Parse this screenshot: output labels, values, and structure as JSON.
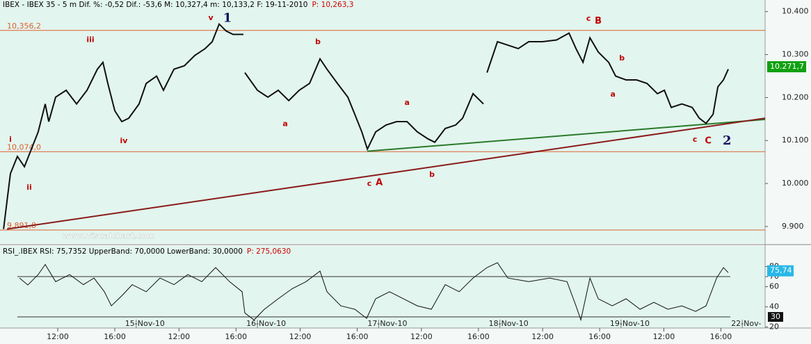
{
  "chart_data": [
    {
      "type": "line",
      "title": "IBEX - IBEX 35 -  5 m Dif. %: -0,52 Dif.: -53,6 M: 10,327,4 m: 10,133,2 F: 19-11-2010",
      "subtitle": "P: 10,263,3",
      "xlim": [
        -1.05,
        52.6
      ],
      "ylim": [
        9861,
        10427
      ],
      "yticks": [
        {
          "value": 10400,
          "label": "10.400"
        },
        {
          "value": 10300,
          "label": "10.300"
        },
        {
          "value": 10200,
          "label": "10.200"
        },
        {
          "value": 10100,
          "label": "10.100"
        },
        {
          "value": 10000,
          "label": "10.000"
        },
        {
          "value": 9900,
          "label": "9.900"
        }
      ],
      "series": [
        {
          "name": "IBEX",
          "color": "#101010",
          "x": [
            -0.8,
            -0.56,
            -0.32,
            0.17,
            0.66,
            1.15,
            1.63,
            2.12,
            2.37,
            2.85,
            3.59,
            4.32,
            5.05,
            5.78,
            6.17,
            6.51,
            7.0,
            7.49,
            7.98,
            8.7,
            9.2,
            9.93,
            10.41,
            11.15,
            11.88,
            12.61,
            13.34,
            13.83,
            14.32,
            14.8,
            15.29,
            16.02,
            16.06,
            16.12,
            17.0,
            17.73,
            18.46,
            19.2,
            19.93,
            20.66,
            21.39,
            21.88,
            22.61,
            23.34,
            23.83,
            24.32,
            24.71,
            25.29,
            26.02,
            26.76,
            27.49,
            28.22,
            28.95,
            29.44,
            30.17,
            30.9,
            31.39,
            32.12,
            32.85,
            32.95,
            33.1,
            33.83,
            34.56,
            35.29,
            36.02,
            37.0,
            37.98,
            38.85,
            39.34,
            39.83,
            40.32,
            40.9,
            41.63,
            42.12,
            42.85,
            43.59,
            44.32,
            45.05,
            45.54,
            46.02,
            46.76,
            47.49,
            47.98,
            48.46,
            48.95,
            49.29,
            49.68,
            50.02
          ],
          "values": [
            9894,
            9958,
            10023,
            10063,
            10039,
            10080,
            10120,
            10185,
            10144,
            10201,
            10217,
            10185,
            10217,
            10266,
            10282,
            10233,
            10169,
            10144,
            10152,
            10185,
            10233,
            10250,
            10217,
            10266,
            10274,
            10298,
            10314,
            10330,
            10371,
            10355,
            10347,
            10347,
            null,
            10258,
            10217,
            10201,
            10217,
            10193,
            10217,
            10233,
            10290,
            10266,
            10233,
            10201,
            10161,
            10120,
            10080,
            10120,
            10136,
            10144,
            10144,
            10120,
            10104,
            10096,
            10128,
            10136,
            10152,
            10209,
            10185,
            null,
            10258,
            10330,
            10322,
            10314,
            10330,
            10330,
            10334,
            10350,
            10314,
            10282,
            10339,
            10306,
            10282,
            10250,
            10241,
            10241,
            10233,
            10209,
            10217,
            10177,
            10185,
            10177,
            10152,
            10140,
            10161,
            10225,
            10241,
            10266
          ]
        }
      ],
      "last": {
        "value": 10271.7,
        "label": "10.271,7",
        "color": "#10a010"
      },
      "hlines": [
        {
          "value": 10356.2,
          "label": "10,356,2",
          "color": "#e06030"
        },
        {
          "value": 10074.0,
          "label": "10,074,0",
          "color": "#e06030"
        },
        {
          "value": 9891.8,
          "label": "9,891,8",
          "color": "#e06030"
        }
      ],
      "trendlines": [
        {
          "color": "#2a7a2a",
          "x": [
            24.71,
            53.6
          ],
          "y": [
            10075,
            10149
          ]
        },
        {
          "color": "#8a1a1a",
          "x": [
            -0.56,
            53.6
          ],
          "y": [
            9894,
            10152
          ]
        }
      ],
      "annotations": [
        {
          "text": "1",
          "x": 14.9,
          "y": 10384,
          "color": "#101060",
          "size": "big"
        },
        {
          "text": "v",
          "x": 13.73,
          "y": 10385,
          "color": "#c00000",
          "size": "small"
        },
        {
          "text": "iii",
          "x": 5.29,
          "y": 10334,
          "color": "#c00000",
          "size": "small"
        },
        {
          "text": "iv",
          "x": 7.63,
          "y": 10099,
          "color": "#c00000",
          "size": "small"
        },
        {
          "text": "i",
          "x": -0.32,
          "y": 10102,
          "color": "#c00000",
          "size": "small"
        },
        {
          "text": "ii",
          "x": 1.0,
          "y": 9990,
          "color": "#c00000",
          "size": "small"
        },
        {
          "text": "b",
          "x": 21.24,
          "y": 10329,
          "color": "#c00000",
          "size": "small"
        },
        {
          "text": "a",
          "x": 18.95,
          "y": 10138,
          "color": "#c00000",
          "size": "small"
        },
        {
          "text": "a",
          "x": 27.49,
          "y": 10188,
          "color": "#c00000",
          "size": "small"
        },
        {
          "text": "c",
          "x": 24.85,
          "y": 9999,
          "color": "#c00000",
          "size": "small"
        },
        {
          "text": "A",
          "x": 25.54,
          "y": 10002,
          "color": "#c00000",
          "size": "mid"
        },
        {
          "text": "b",
          "x": 29.24,
          "y": 10020,
          "color": "#c00000",
          "size": "small"
        },
        {
          "text": "c",
          "x": 40.22,
          "y": 10383,
          "color": "#c00000",
          "size": "small"
        },
        {
          "text": "B",
          "x": 40.9,
          "y": 10378,
          "color": "#c00000",
          "size": "mid"
        },
        {
          "text": "b",
          "x": 42.56,
          "y": 10291,
          "color": "#c00000",
          "size": "small"
        },
        {
          "text": "a",
          "x": 41.93,
          "y": 10207,
          "color": "#c00000",
          "size": "small"
        },
        {
          "text": "c",
          "x": 47.68,
          "y": 10102,
          "color": "#c00000",
          "size": "small"
        },
        {
          "text": "C",
          "x": 48.61,
          "y": 10099,
          "color": "#c00000",
          "size": "mid"
        },
        {
          "text": "2",
          "x": 49.93,
          "y": 10099,
          "color": "#101060",
          "size": "big"
        }
      ],
      "watermark": "www.visualchart.com"
    },
    {
      "type": "line",
      "title": "RSI_.IBEX RSI: 75,7352 UpperBand: 70,0000 LowerBand: 30,0000",
      "subtitle": "P: 275,0630",
      "xlim": [
        -1.05,
        52.6
      ],
      "ylim": [
        19,
        99
      ],
      "yticks": [
        20,
        40,
        60,
        70,
        80
      ],
      "bands": [
        70,
        {
          "value": 30,
          "label": "30"
        }
      ],
      "last": {
        "value": 75.74,
        "label": "75,74",
        "color": "#28b8e8"
      },
      "series": [
        {
          "name": "RSI",
          "color": "#101010",
          "x": [
            0.32,
            0.9,
            1.63,
            2.12,
            2.85,
            3.83,
            4.8,
            5.54,
            6.27,
            6.76,
            7.49,
            8.22,
            9.2,
            10.17,
            11.15,
            12.12,
            13.1,
            14.07,
            15.05,
            15.93,
            16.12,
            16.76,
            17.49,
            18.46,
            19.44,
            20.41,
            21.39,
            21.88,
            22.85,
            23.83,
            24.66,
            25.29,
            26.27,
            27.24,
            28.22,
            29.2,
            30.17,
            31.15,
            32.12,
            33.1,
            33.83,
            34.56,
            36.02,
            37.49,
            38.71,
            39.34,
            39.68,
            40.32,
            40.9,
            41.88,
            42.85,
            43.83,
            44.8,
            45.78,
            46.76,
            47.73,
            48.46,
            49.2,
            49.68,
            50.02
          ],
          "values": [
            68.6,
            61.7,
            72,
            82,
            65,
            72,
            62,
            68.6,
            55,
            41,
            51,
            62,
            55,
            68.6,
            62,
            72,
            65,
            79,
            65,
            55,
            34,
            27,
            37.6,
            48,
            58,
            65,
            75.5,
            55,
            41,
            37.6,
            28.6,
            48,
            55,
            48,
            41,
            37.6,
            62,
            55,
            68.6,
            79,
            83.8,
            68.6,
            65,
            68.6,
            65,
            41,
            27,
            68.6,
            48,
            41,
            48,
            37.6,
            44.5,
            37.6,
            41,
            35.5,
            41,
            68.6,
            79,
            74
          ]
        }
      ],
      "xticks": [
        {
          "value": 3,
          "label": "12:00"
        },
        {
          "value": 7,
          "label": "16:00"
        },
        {
          "value": 11.5,
          "label": "12:00"
        },
        {
          "value": 15.5,
          "label": "16:00"
        },
        {
          "value": 20,
          "label": "12:00"
        },
        {
          "value": 24,
          "label": "16:00"
        },
        {
          "value": 28.5,
          "label": "12:00"
        },
        {
          "value": 32.5,
          "label": "16:00"
        },
        {
          "value": 37,
          "label": "12:00"
        },
        {
          "value": 41,
          "label": "16:00"
        },
        {
          "value": 45.5,
          "label": "12:00"
        },
        {
          "value": 49.5,
          "label": "16:00"
        }
      ],
      "date_ticks": [
        {
          "value": 8.5,
          "label": "15-Nov-10"
        },
        {
          "value": 17,
          "label": "16-Nov-10"
        },
        {
          "value": 25.5,
          "label": "17-Nov-10"
        },
        {
          "value": 34,
          "label": "18-Nov-10"
        },
        {
          "value": 42.5,
          "label": "19-Nov-10"
        },
        {
          "value": 51,
          "label": "22-Nov-"
        }
      ]
    }
  ]
}
